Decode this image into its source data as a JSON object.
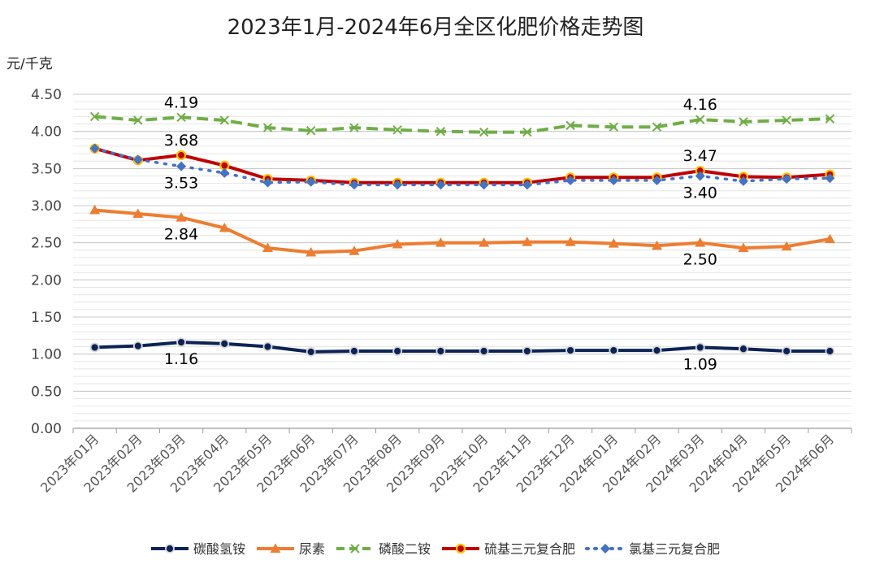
{
  "chart_data": {
    "type": "line",
    "title": "2023年1月-2024年6月全区化肥价格走势图",
    "ylabel": "元/千克",
    "xlabel": "",
    "ylim": [
      0,
      4.5
    ],
    "ytick_step": 0.5,
    "yticks": [
      "0.00",
      "0.50",
      "1.00",
      "1.50",
      "2.00",
      "2.50",
      "3.00",
      "3.50",
      "4.00",
      "4.50"
    ],
    "grid": true,
    "legend_position": "bottom",
    "categories": [
      "2023年01月",
      "2023年02月",
      "2023年03月",
      "2023年04月",
      "2023年05月",
      "2023年06月",
      "2023年07月",
      "2023年08月",
      "2023年09月",
      "2023年10月",
      "2023年11月",
      "2023年12月",
      "2024年01月",
      "2024年02月",
      "2024年03月",
      "2024年04月",
      "2024年05月",
      "2024年06月"
    ],
    "series": [
      {
        "name": "碳酸氢铵",
        "color": "#0d2356",
        "marker": "circle",
        "dash": "solid",
        "values": [
          1.09,
          1.11,
          1.16,
          1.14,
          1.1,
          1.03,
          1.04,
          1.04,
          1.04,
          1.04,
          1.04,
          1.05,
          1.05,
          1.05,
          1.09,
          1.07,
          1.04,
          1.04
        ]
      },
      {
        "name": "尿素",
        "color": "#ed7d31",
        "marker": "triangle",
        "dash": "solid",
        "values": [
          2.94,
          2.89,
          2.84,
          2.7,
          2.43,
          2.37,
          2.39,
          2.48,
          2.5,
          2.5,
          2.51,
          2.51,
          2.49,
          2.46,
          2.5,
          2.43,
          2.45,
          2.55
        ]
      },
      {
        "name": "磷酸二铵",
        "color": "#70ad47",
        "marker": "cross",
        "dash": "dashed",
        "values": [
          4.2,
          4.15,
          4.19,
          4.15,
          4.05,
          4.01,
          4.05,
          4.02,
          4.0,
          3.99,
          3.99,
          4.08,
          4.06,
          4.06,
          4.16,
          4.13,
          4.15,
          4.17
        ]
      },
      {
        "name": "硫基三元复合肥",
        "color": "#c00000",
        "marker": "circle-yellow",
        "dash": "solid",
        "values": [
          3.77,
          3.61,
          3.68,
          3.54,
          3.36,
          3.34,
          3.31,
          3.31,
          3.31,
          3.31,
          3.31,
          3.38,
          3.38,
          3.38,
          3.47,
          3.39,
          3.38,
          3.42
        ]
      },
      {
        "name": "氯基三元复合肥",
        "color": "#4472c4",
        "marker": "diamond",
        "dash": "dotted",
        "values": [
          3.77,
          3.62,
          3.53,
          3.44,
          3.31,
          3.32,
          3.28,
          3.28,
          3.28,
          3.28,
          3.28,
          3.34,
          3.34,
          3.34,
          3.4,
          3.33,
          3.36,
          3.37
        ]
      }
    ],
    "annotations": [
      {
        "series": 2,
        "index": 2,
        "text": "4.19",
        "pos": "above"
      },
      {
        "series": 2,
        "index": 14,
        "text": "4.16",
        "pos": "above"
      },
      {
        "series": 3,
        "index": 2,
        "text": "3.68",
        "pos": "above"
      },
      {
        "series": 3,
        "index": 14,
        "text": "3.47",
        "pos": "above"
      },
      {
        "series": 4,
        "index": 2,
        "text": "3.53",
        "pos": "below"
      },
      {
        "series": 4,
        "index": 14,
        "text": "3.40",
        "pos": "below"
      },
      {
        "series": 1,
        "index": 2,
        "text": "2.84",
        "pos": "below"
      },
      {
        "series": 1,
        "index": 14,
        "text": "2.50",
        "pos": "below"
      },
      {
        "series": 0,
        "index": 2,
        "text": "1.16",
        "pos": "below"
      },
      {
        "series": 0,
        "index": 14,
        "text": "1.09",
        "pos": "below"
      }
    ]
  }
}
